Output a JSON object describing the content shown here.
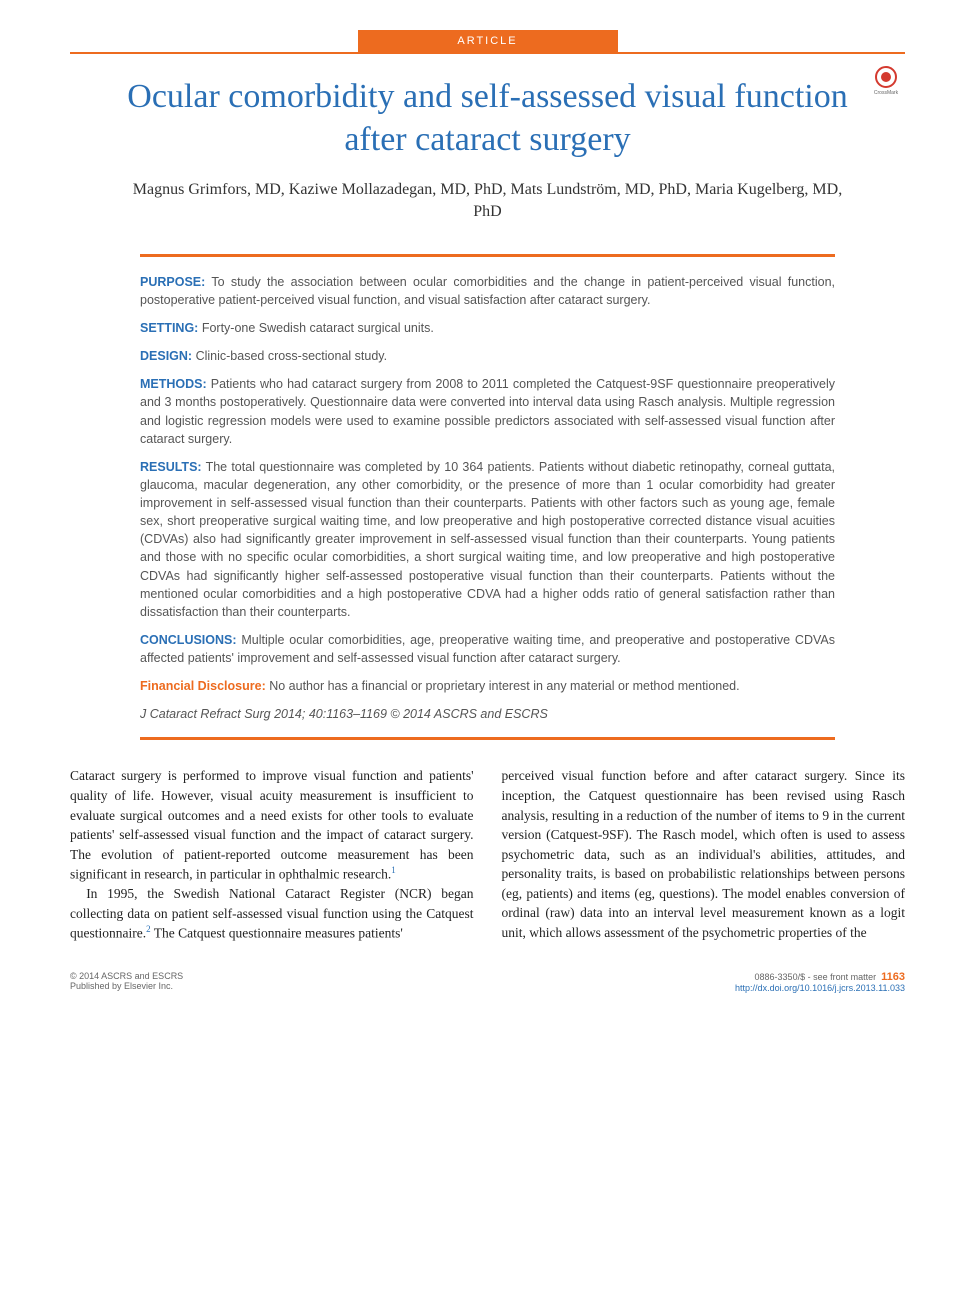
{
  "header": {
    "tag": "ARTICLE",
    "title": "Ocular comorbidity and self-assessed visual function after cataract surgery",
    "crossmark_label": "CrossMark",
    "authors": "Magnus Grimfors, MD, Kaziwe Mollazadegan, MD, PhD, Mats Lundström, MD, PhD, Maria Kugelberg, MD, PhD"
  },
  "abstract": {
    "purpose_label": "PURPOSE:",
    "purpose_text": " To study the association between ocular comorbidities and the change in patient-perceived visual function, postoperative patient-perceived visual function, and visual satisfaction after cataract surgery.",
    "setting_label": "SETTING:",
    "setting_text": " Forty-one Swedish cataract surgical units.",
    "design_label": "DESIGN:",
    "design_text": " Clinic-based cross-sectional study.",
    "methods_label": "METHODS:",
    "methods_text": " Patients who had cataract surgery from 2008 to 2011 completed the Catquest-9SF questionnaire preoperatively and 3 months postoperatively. Questionnaire data were converted into interval data using Rasch analysis. Multiple regression and logistic regression models were used to examine possible predictors associated with self-assessed visual function after cataract surgery.",
    "results_label": "RESULTS:",
    "results_text": " The total questionnaire was completed by 10 364 patients. Patients without diabetic retinopathy, corneal guttata, glaucoma, macular degeneration, any other comorbidity, or the presence of more than 1 ocular comorbidity had greater improvement in self-assessed visual function than their counterparts. Patients with other factors such as young age, female sex, short preoperative surgical waiting time, and low preoperative and high postoperative corrected distance visual acuities (CDVAs) also had significantly greater improvement in self-assessed visual function than their counterparts. Young patients and those with no specific ocular comorbidities, a short surgical waiting time, and low preoperative and high postoperative CDVAs had significantly higher self-assessed postoperative visual function than their counterparts. Patients without the mentioned ocular comorbidities and a high postoperative CDVA had a higher odds ratio of general satisfaction rather than dissatisfaction than their counterparts.",
    "conclusions_label": "CONCLUSIONS:",
    "conclusions_text": " Multiple ocular comorbidities, age, preoperative waiting time, and preoperative and postoperative CDVAs affected patients' improvement and self-assessed visual function after cataract surgery.",
    "financial_label": "Financial Disclosure:",
    "financial_text": " No author has a financial or proprietary interest in any material or method mentioned.",
    "citation": "J Cataract Refract Surg 2014; 40:1163–1169 © 2014 ASCRS and ESCRS"
  },
  "body": {
    "col1_p1": "Cataract surgery is performed to improve visual function and patients' quality of life. However, visual acuity measurement is insufficient to evaluate surgical outcomes and a need exists for other tools to evaluate patients' self-assessed visual function and the impact of cataract surgery. The evolution of patient-reported outcome measurement has been significant in research, in particular in ophthalmic research.",
    "col1_ref1": "1",
    "col1_p2a": "In 1995, the Swedish National Cataract Register (NCR) began collecting data on patient self-assessed visual function using the Catquest questionnaire.",
    "col1_ref2": "2",
    "col1_p2b": " The Catquest questionnaire measures patients'",
    "col2_p1": "perceived visual function before and after cataract surgery. Since its inception, the Catquest questionnaire has been revised using Rasch analysis, resulting in a reduction of the number of items to 9 in the current version (Catquest-9SF). The Rasch model, which often is used to assess psychometric data, such as an individual's abilities, attitudes, and personality traits, is based on probabilistic relationships between persons (eg, patients) and items (eg, questions). The model enables conversion of ordinal (raw) data into an interval level measurement known as a logit unit, which allows assessment of the psychometric properties of the"
  },
  "footer": {
    "copyright": "© 2014 ASCRS and ESCRS",
    "publisher": "Published by Elsevier Inc.",
    "issn": "0886-3350/$ - see front matter",
    "page": "1163",
    "doi": "http://dx.doi.org/10.1016/j.jcrs.2013.11.033"
  },
  "colors": {
    "orange": "#ed6b1f",
    "blue": "#2a6fb5",
    "text": "#333333",
    "abstract_text": "#555555"
  }
}
